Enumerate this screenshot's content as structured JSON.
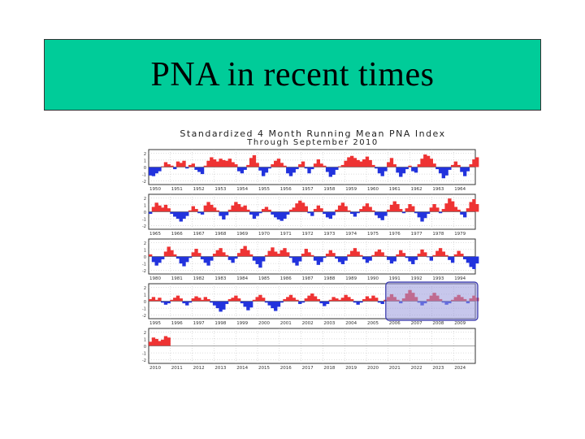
{
  "slide": {
    "title": "PNA in recent times"
  },
  "colors": {
    "title_bg": "#00cc99",
    "positive": "#ee3333",
    "negative": "#2233dd",
    "highlight_fill": "#9999dd",
    "highlight_stroke": "#3333aa"
  },
  "chart_data": {
    "type": "area",
    "title": "Standardized 4 Month Running Mean PNA Index",
    "subtitle": "Through September 2010",
    "y_ticks": [
      "2",
      "1",
      "0",
      "-1",
      "-2"
    ],
    "ylim": [
      -2.5,
      2.5
    ],
    "grid": true,
    "highlight": {
      "panel": 3,
      "from_year": 2006,
      "to_year": 2010
    },
    "panels": [
      {
        "start": 1950,
        "tick_labels": [
          "1950",
          "1951",
          "1952",
          "1953",
          "1954",
          "1955",
          "1956",
          "1957",
          "1958",
          "1959",
          "1960",
          "1961",
          "1962",
          "1963",
          "1964"
        ],
        "values": [
          -1.2,
          -1.3,
          -0.9,
          -0.6,
          0.1,
          0.7,
          0.4,
          0.2,
          -0.3,
          0.8,
          0.6,
          0.9,
          -0.2,
          0.3,
          0.5,
          -0.4,
          -0.7,
          -1.0,
          0.2,
          0.9,
          1.4,
          1.1,
          0.8,
          1.2,
          1.0,
          0.9,
          1.2,
          0.7,
          0.4,
          -0.6,
          -0.9,
          -0.4,
          0.3,
          1.3,
          1.7,
          0.6,
          -0.5,
          -1.3,
          -0.8,
          -0.2,
          0.4,
          0.9,
          1.2,
          0.6,
          0.2,
          -0.9,
          -1.3,
          -0.8,
          -0.3,
          0.4,
          0.8,
          -0.2,
          -0.9,
          -0.3,
          0.5,
          1.1,
          0.5,
          0.2,
          -0.7,
          -1.4,
          -1.1,
          -0.4,
          0.1,
          0.3,
          0.9,
          1.4,
          1.6,
          1.3,
          1.0,
          0.8,
          1.1,
          1.5,
          1.0,
          0.3,
          -0.2,
          -0.9,
          -1.3,
          -0.6,
          0.7,
          1.3,
          0.4,
          -0.8,
          -1.4,
          -0.9,
          -0.3,
          0.2,
          -0.6,
          -0.8,
          0.4,
          1.2,
          1.8,
          1.6,
          1.2,
          0.5,
          -0.3,
          -0.9,
          -1.6,
          -1.2,
          -0.4,
          0.3,
          0.8,
          0.3,
          -0.7,
          -1.3,
          -0.6,
          0.4,
          1.1,
          1.4
        ]
      },
      {
        "start": 1965,
        "tick_labels": [
          "1965",
          "1966",
          "1967",
          "1968",
          "1969",
          "1970",
          "1971",
          "1972",
          "1973",
          "1974",
          "1975",
          "1976",
          "1977",
          "1978",
          "1979"
        ],
        "values": [
          -0.3,
          0.7,
          1.3,
          0.9,
          0.6,
          1.0,
          0.5,
          -0.3,
          -0.7,
          -1.0,
          -1.4,
          -1.0,
          -0.6,
          0.2,
          0.8,
          0.4,
          -0.2,
          -0.4,
          0.9,
          1.4,
          1.0,
          0.6,
          0.2,
          -0.6,
          -1.1,
          -0.5,
          0.3,
          0.9,
          1.4,
          1.1,
          0.7,
          0.9,
          0.3,
          -0.4,
          -1.0,
          -0.6,
          -0.2,
          0.4,
          0.7,
          0.3,
          -0.4,
          -0.8,
          -1.1,
          -1.3,
          -1.0,
          -0.4,
          0.3,
          0.6,
          1.2,
          1.6,
          1.3,
          0.8,
          -0.2,
          -0.6,
          0.4,
          0.9,
          0.5,
          -0.3,
          -0.8,
          -1.0,
          -0.5,
          0.3,
          0.9,
          1.3,
          0.8,
          0.2,
          -0.3,
          -0.7,
          -0.2,
          0.4,
          0.8,
          1.2,
          0.7,
          0.2,
          -0.5,
          -0.9,
          -1.2,
          -0.6,
          0.3,
          1.0,
          1.5,
          1.1,
          0.4,
          -0.2,
          0.5,
          1.1,
          0.8,
          -0.2,
          -0.8,
          -1.4,
          -0.9,
          -0.3,
          0.6,
          1.1,
          0.6,
          -0.2,
          0.4,
          1.2,
          1.9,
          1.5,
          0.7,
          0.3,
          -0.4,
          -0.8,
          0.5,
          1.4,
          1.8,
          1.1
        ]
      },
      {
        "start": 1980,
        "tick_labels": [
          "1980",
          "1981",
          "1982",
          "1983",
          "1984",
          "1985",
          "1986",
          "1987",
          "1988",
          "1989",
          "1990",
          "1991",
          "1992",
          "1993",
          "1994"
        ],
        "values": [
          0.3,
          -0.8,
          -1.3,
          -0.9,
          -0.4,
          0.7,
          1.4,
          0.9,
          0.3,
          -0.3,
          -1.0,
          -1.4,
          -0.8,
          -0.2,
          0.6,
          1.1,
          0.5,
          -0.4,
          -0.9,
          -1.3,
          -0.6,
          0.4,
          0.9,
          1.2,
          0.6,
          0.2,
          -0.5,
          -0.9,
          -0.3,
          0.5,
          1.1,
          1.5,
          0.9,
          0.3,
          -0.6,
          -1.1,
          -1.6,
          -0.7,
          0.2,
          0.8,
          1.3,
          0.7,
          0.4,
          0.9,
          1.2,
          0.6,
          -0.2,
          -0.9,
          -1.3,
          -0.7,
          0.4,
          1.1,
          0.6,
          0.2,
          -0.6,
          -1.2,
          -0.8,
          -0.2,
          0.4,
          0.9,
          0.5,
          -0.3,
          -0.8,
          -1.1,
          -0.6,
          0.3,
          0.8,
          1.2,
          0.7,
          0.2,
          -0.4,
          -0.9,
          -0.6,
          0.2,
          0.7,
          1.0,
          0.6,
          0.1,
          -0.5,
          -1.0,
          -0.7,
          0.3,
          0.9,
          0.5,
          -0.2,
          -0.7,
          -1.1,
          -0.5,
          0.4,
          1.0,
          0.6,
          -0.1,
          -0.6,
          0.2,
          0.8,
          1.2,
          0.7,
          0.2,
          -0.5,
          -0.9,
          0.3,
          0.8,
          0.4,
          -0.4,
          -0.9,
          -1.5,
          -1.8,
          -1.0
        ]
      },
      {
        "start": 1995,
        "tick_labels": [
          "1995",
          "1996",
          "1997",
          "1998",
          "1999",
          "2000",
          "2001",
          "2002",
          "2003",
          "2004",
          "2005",
          "2006",
          "2007",
          "2008",
          "2009"
        ],
        "values": [
          0.3,
          0.6,
          0.2,
          0.5,
          -0.2,
          -0.5,
          -0.3,
          0.2,
          0.5,
          0.8,
          0.4,
          -0.3,
          -0.6,
          -0.2,
          0.4,
          0.7,
          0.5,
          0.2,
          0.6,
          0.3,
          -0.2,
          -0.6,
          -1.0,
          -1.5,
          -1.2,
          -0.4,
          0.3,
          0.5,
          0.8,
          0.4,
          -0.3,
          -0.8,
          -1.3,
          -0.9,
          0.2,
          0.6,
          0.9,
          0.5,
          -0.2,
          -0.6,
          -1.0,
          -1.4,
          -0.8,
          -0.2,
          0.3,
          0.6,
          0.9,
          0.5,
          0.2,
          -0.4,
          -0.2,
          0.4,
          0.8,
          1.1,
          0.7,
          0.3,
          -0.3,
          -0.7,
          -0.4,
          0.2,
          0.6,
          0.4,
          0.2,
          0.5,
          0.9,
          0.6,
          0.3,
          -0.2,
          -0.5,
          -0.2,
          0.3,
          0.7,
          0.4,
          0.8,
          0.5,
          -0.2,
          -0.4,
          0.2,
          0.6,
          1.0,
          0.6,
          0.2,
          -0.3,
          0.4,
          1.1,
          1.6,
          1.2,
          0.6,
          -0.2,
          -0.6,
          -0.3,
          0.3,
          0.8,
          1.2,
          0.8,
          0.3,
          -0.2,
          -0.5,
          -0.3,
          0.2,
          0.6,
          0.9,
          0.6,
          0.3,
          -0.3,
          0.4,
          0.8,
          0.5
        ]
      },
      {
        "start": 2010,
        "tick_labels": [
          "2010",
          "2011",
          "2012",
          "2013",
          "2014",
          "2015",
          "2016",
          "2017",
          "2018",
          "2019",
          "2020",
          "2021",
          "2022",
          "2023",
          "2024"
        ],
        "values": [
          0.6,
          1.2,
          1.0,
          0.7,
          0.9,
          1.4,
          1.2
        ]
      }
    ]
  }
}
